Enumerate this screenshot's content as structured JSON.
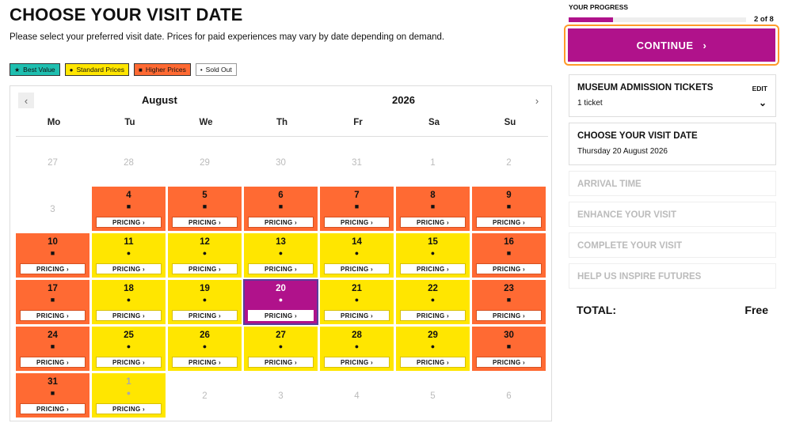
{
  "page": {
    "title": "CHOOSE YOUR VISIT DATE",
    "subtitle": "Please select your preferred visit date. Prices for paid experiences may vary by date depending on demand."
  },
  "legend": [
    {
      "symbol": "★",
      "label": "Best Value",
      "color": "#1fbfb0"
    },
    {
      "symbol": "●",
      "label": "Standard Prices",
      "color": "#ffe600"
    },
    {
      "symbol": "■",
      "label": "Higher Prices",
      "color": "#ff6a33"
    },
    {
      "symbol": "•",
      "label": "Sold Out",
      "color": "#ffffff"
    }
  ],
  "calendar": {
    "month": "August",
    "year": "2026",
    "prev_icon": "‹",
    "next_icon": "›",
    "weekdays": [
      "Mo",
      "Tu",
      "We",
      "Th",
      "Fr",
      "Sa",
      "Su"
    ],
    "pricing_label": "PRICING ›",
    "days": [
      {
        "d": "27",
        "t": "muted"
      },
      {
        "d": "28",
        "t": "muted"
      },
      {
        "d": "29",
        "t": "muted"
      },
      {
        "d": "30",
        "t": "muted"
      },
      {
        "d": "31",
        "t": "muted"
      },
      {
        "d": "1",
        "t": "muted"
      },
      {
        "d": "2",
        "t": "muted"
      },
      {
        "d": "3",
        "t": "muted"
      },
      {
        "d": "4",
        "t": "orange"
      },
      {
        "d": "5",
        "t": "orange"
      },
      {
        "d": "6",
        "t": "orange"
      },
      {
        "d": "7",
        "t": "orange"
      },
      {
        "d": "8",
        "t": "orange"
      },
      {
        "d": "9",
        "t": "orange"
      },
      {
        "d": "10",
        "t": "orange"
      },
      {
        "d": "11",
        "t": "yellow"
      },
      {
        "d": "12",
        "t": "yellow"
      },
      {
        "d": "13",
        "t": "yellow"
      },
      {
        "d": "14",
        "t": "yellow"
      },
      {
        "d": "15",
        "t": "yellow"
      },
      {
        "d": "16",
        "t": "orange"
      },
      {
        "d": "17",
        "t": "orange"
      },
      {
        "d": "18",
        "t": "yellow"
      },
      {
        "d": "19",
        "t": "yellow"
      },
      {
        "d": "20",
        "t": "selected"
      },
      {
        "d": "21",
        "t": "yellow"
      },
      {
        "d": "22",
        "t": "yellow"
      },
      {
        "d": "23",
        "t": "orange"
      },
      {
        "d": "24",
        "t": "orange"
      },
      {
        "d": "25",
        "t": "yellow"
      },
      {
        "d": "26",
        "t": "yellow"
      },
      {
        "d": "27",
        "t": "yellow"
      },
      {
        "d": "28",
        "t": "yellow"
      },
      {
        "d": "29",
        "t": "yellow"
      },
      {
        "d": "30",
        "t": "orange"
      },
      {
        "d": "31",
        "t": "orange"
      },
      {
        "d": "1",
        "t": "yellow-next"
      },
      {
        "d": "2",
        "t": "muted"
      },
      {
        "d": "3",
        "t": "muted"
      },
      {
        "d": "4",
        "t": "muted"
      },
      {
        "d": "5",
        "t": "muted"
      },
      {
        "d": "6",
        "t": "muted"
      }
    ]
  },
  "sidebar": {
    "progress_label": "YOUR PROGRESS",
    "progress_count": "2 of 8",
    "progress_fraction": 0.25,
    "continue_label": "CONTINUE",
    "continue_icon": "›",
    "museum": {
      "title": "MUSEUM ADMISSION TICKETS",
      "edit": "EDIT",
      "detail": "1 ticket",
      "chevron": "⌄"
    },
    "date": {
      "title": "CHOOSE YOUR VISIT DATE",
      "detail": "Thursday 20 August 2026"
    },
    "steps_pending": [
      "ARRIVAL TIME",
      "ENHANCE YOUR VISIT",
      "COMPLETE YOUR VISIT",
      "HELP US INSPIRE FUTURES"
    ],
    "total_label": "TOTAL:",
    "total_value": "Free"
  }
}
